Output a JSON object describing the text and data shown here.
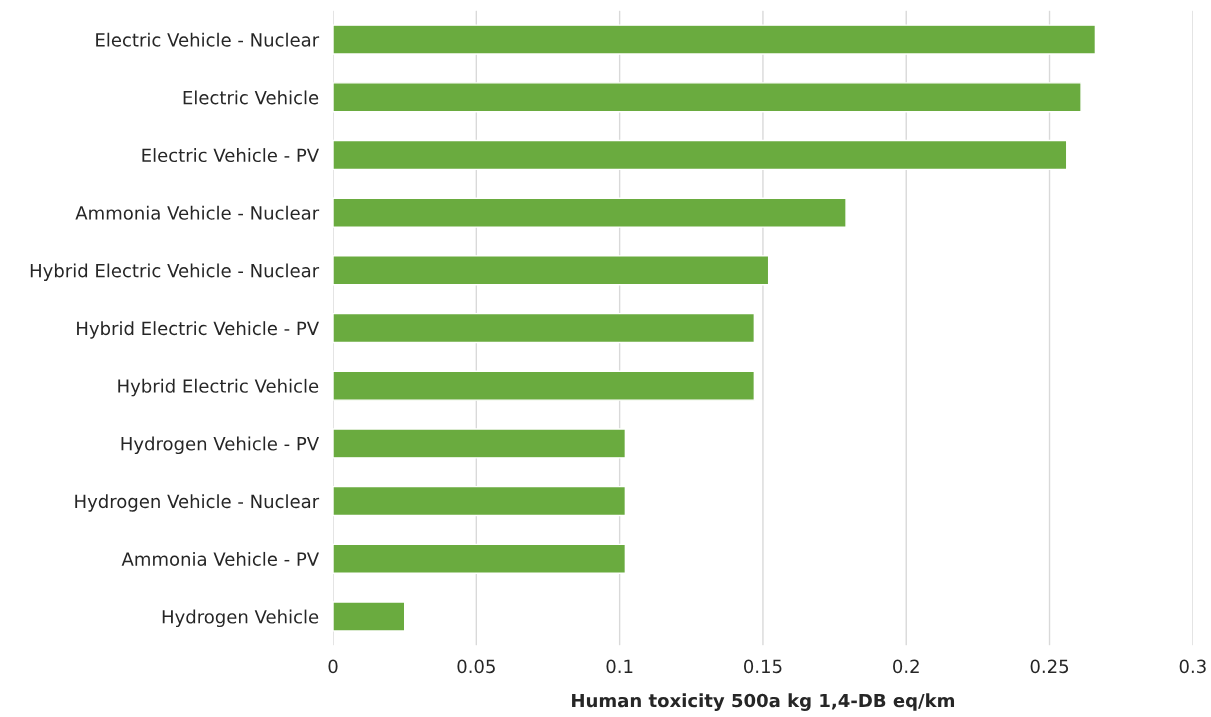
{
  "chart_data": {
    "type": "bar",
    "orientation": "horizontal",
    "categories": [
      "Electric Vehicle - Nuclear",
      "Electric Vehicle",
      "Electric Vehicle - PV",
      "Ammonia Vehicle - Nuclear",
      "Hybrid Electric Vehicle - Nuclear",
      "Hybrid Electric Vehicle - PV",
      "Hybrid Electric Vehicle",
      "Hydrogen Vehicle - PV",
      "Hydrogen Vehicle - Nuclear",
      "Ammonia Vehicle - PV",
      "Hydrogen Vehicle"
    ],
    "values": [
      0.266,
      0.261,
      0.256,
      0.179,
      0.152,
      0.147,
      0.147,
      0.102,
      0.102,
      0.102,
      0.025
    ],
    "color": "#6aab3f",
    "xlabel": "Human toxicity 500a kg 1,4-DB eq/km",
    "xlim": [
      0,
      0.3
    ],
    "xticks": [
      0,
      0.05,
      0.1,
      0.15,
      0.2,
      0.25,
      0.3
    ],
    "grid": "x"
  }
}
